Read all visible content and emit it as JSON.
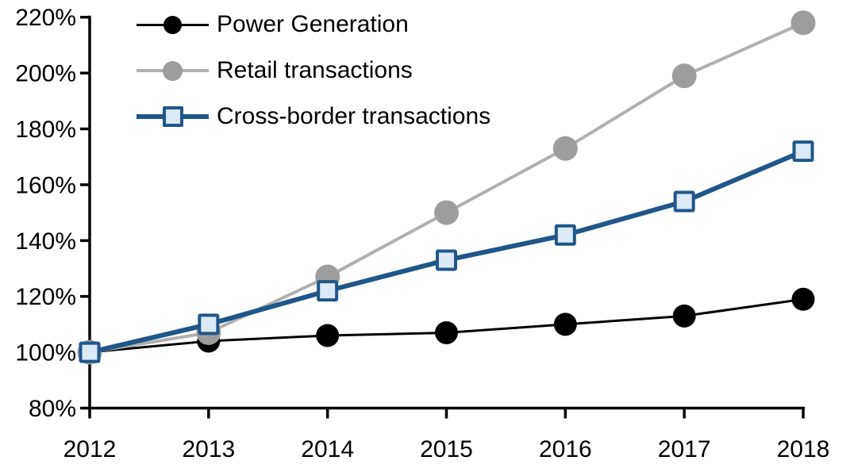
{
  "chart_data": {
    "type": "line",
    "title": "",
    "xlabel": "",
    "ylabel": "",
    "x": [
      2012,
      2013,
      2014,
      2015,
      2016,
      2017,
      2018
    ],
    "x_tick_labels": [
      "2012",
      "2013",
      "2014",
      "2015",
      "2016",
      "2017",
      "2018"
    ],
    "series": [
      {
        "name": "Power Generation",
        "values": [
          100,
          104,
          106,
          107,
          110,
          113,
          119
        ],
        "color": "#000000",
        "marker": "circle",
        "marker_fill": "#000000"
      },
      {
        "name": "Retail transactions",
        "values": [
          100,
          107,
          127,
          150,
          173,
          199,
          218
        ],
        "color": "#b0b0b0",
        "marker": "circle",
        "marker_fill": "#9d9d9d"
      },
      {
        "name": "Cross-border transactions",
        "values": [
          100,
          110,
          122,
          133,
          142,
          154,
          172
        ],
        "color": "#20568a",
        "marker": "square",
        "marker_fill": "#dce9f6"
      }
    ],
    "ylim": [
      80,
      220
    ],
    "y_ticks": [
      80,
      100,
      120,
      140,
      160,
      180,
      200,
      220
    ],
    "y_tick_labels": [
      "80%",
      "100%",
      "120%",
      "140%",
      "160%",
      "180%",
      "200%",
      "220%"
    ],
    "grid": false,
    "legend_position": "top-left",
    "axis_color": "#000000",
    "background_color": "#ffffff"
  }
}
